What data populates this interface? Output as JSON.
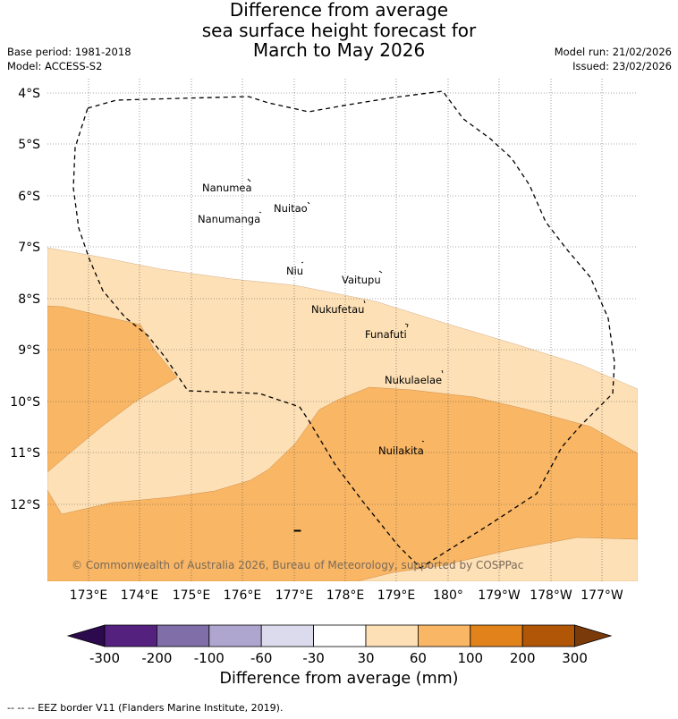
{
  "title": {
    "line1": "Difference from average",
    "line2": "sea surface height forecast for",
    "line3": "March to May 2026"
  },
  "meta_left": {
    "base_period": "Base period: 1981-2018",
    "model": "Model: ACCESS-S2"
  },
  "meta_right": {
    "model_run": "Model run: 21/02/2026",
    "issued": "Issued: 23/02/2026"
  },
  "map": {
    "lat_labels": [
      "4°S",
      "5°S",
      "6°S",
      "7°S",
      "8°S",
      "9°S",
      "10°S",
      "11°S",
      "12°S"
    ],
    "lon_labels": [
      "173°E",
      "174°E",
      "175°E",
      "176°E",
      "177°E",
      "178°E",
      "179°E",
      "180°",
      "179°W",
      "178°W",
      "177°W"
    ],
    "islands": [
      "Nanumea",
      "Nuitao",
      "Nanumanga",
      "Niu",
      "Vaitupu",
      "Nukufetau",
      "Funafuti",
      "Nukulaelae",
      "Nuilakita"
    ],
    "copyright": "© Commonwealth of Australia 2026, Bureau of Meteorology, supported by COSPPac",
    "colors": {
      "band_30_60": "#fde0b5",
      "band_60_100": "#f9b664",
      "ocean_near_avg": "#ffffff"
    }
  },
  "colorbar": {
    "ticks": [
      "-300",
      "-200",
      "-100",
      "-60",
      "-30",
      "30",
      "60",
      "100",
      "200",
      "300"
    ],
    "colors": [
      "#2d0a4e",
      "#54217f",
      "#7f6ea8",
      "#afa6cf",
      "#dbdbed",
      "#ffffff",
      "#fde0b5",
      "#f9b664",
      "#e1821b",
      "#b15506",
      "#7a3a0a"
    ],
    "label": "Difference from average (mm)"
  },
  "footnote": "-- -- -- EEZ border V11 (Flanders Marine Institute, 2019)."
}
